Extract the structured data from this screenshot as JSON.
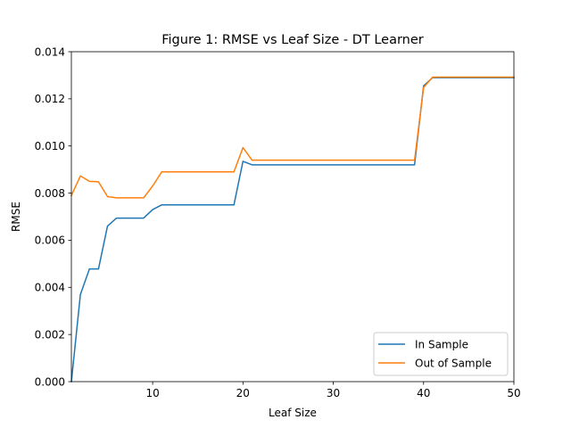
{
  "chart_data": {
    "type": "line",
    "title": "Figure 1: RMSE vs Leaf Size - DT Learner",
    "xlabel": "Leaf Size",
    "ylabel": "RMSE",
    "xlim": [
      1,
      50
    ],
    "ylim": [
      0.0,
      0.014
    ],
    "xticks": [
      10,
      20,
      30,
      40,
      50
    ],
    "xtick_labels": [
      "10",
      "20",
      "30",
      "40",
      "50"
    ],
    "yticks": [
      0.0,
      0.002,
      0.004,
      0.006,
      0.008,
      0.01,
      0.012,
      0.014
    ],
    "ytick_labels": [
      "0.000",
      "0.002",
      "0.004",
      "0.006",
      "0.008",
      "0.010",
      "0.012",
      "0.014"
    ],
    "grid": false,
    "legend_position": "lower-right",
    "x": [
      1,
      2,
      3,
      4,
      5,
      6,
      7,
      8,
      9,
      10,
      11,
      12,
      13,
      14,
      15,
      16,
      17,
      18,
      19,
      20,
      21,
      22,
      23,
      24,
      25,
      26,
      27,
      28,
      29,
      30,
      31,
      32,
      33,
      34,
      35,
      36,
      37,
      38,
      39,
      40,
      41,
      42,
      43,
      44,
      45,
      46,
      47,
      48,
      49,
      50
    ],
    "series": [
      {
        "name": "In Sample",
        "color": "#1f77b4",
        "values": [
          0.0,
          0.0037,
          0.00478,
          0.00478,
          0.0066,
          0.00694,
          0.00694,
          0.00694,
          0.00694,
          0.0073,
          0.0075,
          0.0075,
          0.0075,
          0.0075,
          0.0075,
          0.0075,
          0.0075,
          0.0075,
          0.0075,
          0.00935,
          0.0092,
          0.0092,
          0.0092,
          0.0092,
          0.0092,
          0.0092,
          0.0092,
          0.0092,
          0.0092,
          0.0092,
          0.0092,
          0.0092,
          0.0092,
          0.0092,
          0.0092,
          0.0092,
          0.0092,
          0.0092,
          0.0092,
          0.01255,
          0.0129,
          0.0129,
          0.0129,
          0.0129,
          0.0129,
          0.0129,
          0.0129,
          0.0129,
          0.0129,
          0.0129
        ]
      },
      {
        "name": "Out of Sample",
        "color": "#ff7f0e",
        "values": [
          0.0079,
          0.00873,
          0.0085,
          0.00848,
          0.00785,
          0.0078,
          0.0078,
          0.0078,
          0.0078,
          0.0083,
          0.0089,
          0.0089,
          0.0089,
          0.0089,
          0.0089,
          0.0089,
          0.0089,
          0.0089,
          0.0089,
          0.00993,
          0.0094,
          0.0094,
          0.0094,
          0.0094,
          0.0094,
          0.0094,
          0.0094,
          0.0094,
          0.0094,
          0.0094,
          0.0094,
          0.0094,
          0.0094,
          0.0094,
          0.0094,
          0.0094,
          0.0094,
          0.0094,
          0.0094,
          0.01248,
          0.01292,
          0.01292,
          0.01292,
          0.01292,
          0.01292,
          0.01292,
          0.01292,
          0.01292,
          0.01292,
          0.01292
        ]
      }
    ]
  }
}
